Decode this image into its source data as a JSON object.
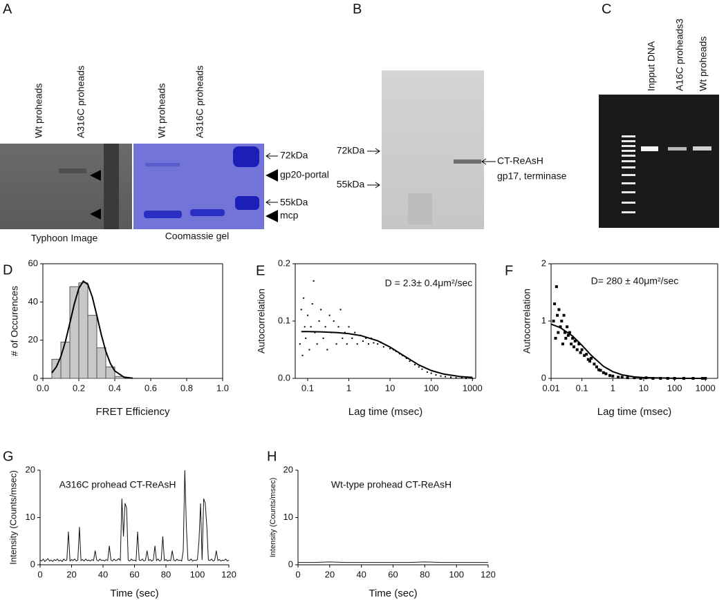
{
  "gels": {
    "A": {
      "panel_label": "A",
      "lanes": [
        "Wt proheads",
        "A316C proheads",
        "Wt proheads",
        "A316C  proheads"
      ],
      "markers": [
        "72kDa",
        "gp20-portal",
        "55kDa",
        "mcp"
      ],
      "captions": [
        "Typhoon Image",
        "Coomassie gel"
      ]
    },
    "B": {
      "panel_label": "B",
      "markers": [
        "72kDa",
        "55kDa"
      ],
      "band_labels": [
        "CT-ReAsH",
        "gp17, terminase"
      ]
    },
    "C": {
      "panel_label": "C",
      "lanes": [
        "Inpput DNA",
        "A16C  proheads3",
        "Wt proheads"
      ]
    }
  },
  "chart_data": [
    {
      "type": "histogram",
      "panel_label": "D",
      "x_label": "FRET Efficiency",
      "y_label": "# of Occurences",
      "bins": [
        0.05,
        0.1,
        0.15,
        0.2,
        0.25,
        0.3,
        0.35,
        0.4,
        0.45
      ],
      "counts": [
        10,
        19,
        48,
        50,
        33,
        16,
        6,
        1
      ],
      "fit_x": [
        0.05,
        0.075,
        0.1,
        0.125,
        0.15,
        0.175,
        0.2,
        0.225,
        0.25,
        0.275,
        0.3,
        0.325,
        0.35,
        0.375,
        0.4,
        0.45,
        0.5
      ],
      "fit_y": [
        2.9,
        6.0,
        11.4,
        19.1,
        28.9,
        39.0,
        47.1,
        50.9,
        49.2,
        42.6,
        33.0,
        22.9,
        14.2,
        7.9,
        3.9,
        0.7,
        0.1
      ],
      "color": "#c8c8c8",
      "xlim": [
        0,
        1
      ],
      "xticks": [
        {
          "value": 0,
          "label": "0.0"
        },
        0.2,
        0.4,
        0.6,
        0.8,
        {
          "value": 1,
          "label": "1.0"
        }
      ],
      "ylim": [
        0,
        60
      ],
      "yticks": [
        0,
        20,
        40,
        60
      ]
    },
    {
      "type": "scatter",
      "panel_label": "E",
      "x_label": "Lag time (msec)",
      "y_label": "Autocorrelation",
      "annotation": "D = 2.3± 0.4μm²/sec",
      "xscale": "log",
      "marker": "dot",
      "x": [
        0.065,
        0.07,
        0.075,
        0.08,
        0.085,
        0.09,
        0.1,
        0.11,
        0.12,
        0.13,
        0.14,
        0.15,
        0.17,
        0.19,
        0.21,
        0.24,
        0.27,
        0.3,
        0.34,
        0.38,
        0.43,
        0.5,
        0.56,
        0.63,
        0.7,
        0.8,
        0.9,
        1,
        1.2,
        1.4,
        1.6,
        1.9,
        2.2,
        2.6,
        3,
        3.5,
        4,
        5,
        6,
        7,
        8,
        10,
        12,
        14,
        17,
        20,
        25,
        30,
        40,
        50,
        60,
        80,
        100,
        130,
        170,
        220,
        300,
        400,
        550,
        700,
        900,
        1000
      ],
      "values": [
        0.06,
        0.12,
        0.04,
        0.14,
        0.09,
        0.07,
        0.11,
        0.05,
        0.09,
        0.13,
        0.17,
        0.08,
        0.06,
        0.1,
        0.12,
        0.07,
        0.09,
        0.05,
        0.11,
        0.08,
        0.1,
        0.06,
        0.09,
        0.12,
        0.07,
        0.08,
        0.06,
        0.09,
        0.07,
        0.08,
        0.06,
        0.075,
        0.065,
        0.07,
        0.06,
        0.07,
        0.062,
        0.06,
        0.063,
        0.055,
        0.058,
        0.052,
        0.05,
        0.047,
        0.043,
        0.04,
        0.035,
        0.03,
        0.024,
        0.02,
        0.016,
        0.011,
        0.009,
        0.006,
        0.004,
        0.003,
        0.002,
        0.001,
        0.001,
        0,
        0.001,
        0
      ],
      "fit_x": [
        0.07,
        0.1,
        0.2,
        0.5,
        1,
        2,
        5,
        10,
        20,
        50,
        100,
        200,
        500,
        1000
      ],
      "fit_y": [
        0.0817,
        0.0816,
        0.0812,
        0.08,
        0.078,
        0.0745,
        0.0656,
        0.0547,
        0.041,
        0.0234,
        0.0137,
        0.0075,
        0.0032,
        0.0016
      ],
      "xlim": [
        0.05,
        1200
      ],
      "xticks": [
        0.1,
        1,
        10,
        100,
        1000
      ],
      "ylim": [
        0,
        0.2
      ],
      "yticks": [
        {
          "value": 0,
          "label": "0.0"
        },
        0.1,
        0.2
      ]
    },
    {
      "type": "scatter",
      "panel_label": "F",
      "x_label": "Lag time (msec)",
      "y_label": "Autocorrelation",
      "annotation": "D= 280 ± 40μm²/sec",
      "xscale": "log",
      "marker": "square",
      "x": [
        0.012,
        0.013,
        0.014,
        0.015,
        0.016,
        0.017,
        0.018,
        0.02,
        0.022,
        0.024,
        0.026,
        0.028,
        0.03,
        0.033,
        0.036,
        0.04,
        0.045,
        0.05,
        0.055,
        0.06,
        0.07,
        0.08,
        0.09,
        0.1,
        0.12,
        0.14,
        0.16,
        0.18,
        0.2,
        0.25,
        0.3,
        0.35,
        0.4,
        0.5,
        0.6,
        0.8,
        1,
        1.5,
        2,
        3,
        5,
        8,
        12,
        20,
        35,
        60,
        100,
        200,
        400,
        800,
        1000
      ],
      "values": [
        1.0,
        1.3,
        0.7,
        1.6,
        1.1,
        0.8,
        1.2,
        0.9,
        1.0,
        0.6,
        1.1,
        0.8,
        0.7,
        0.9,
        0.75,
        0.8,
        0.6,
        0.7,
        0.55,
        0.65,
        0.5,
        0.6,
        0.45,
        0.5,
        0.4,
        0.42,
        0.33,
        0.3,
        0.35,
        0.25,
        0.2,
        0.15,
        0.14,
        0.1,
        0.08,
        0.05,
        0.04,
        0.02,
        0.02,
        0.01,
        0.01,
        0,
        0.01,
        0,
        0,
        0,
        0,
        0,
        0,
        0,
        0
      ],
      "fit_x": [
        0.01,
        0.02,
        0.05,
        0.1,
        0.2,
        0.5,
        1,
        2,
        5,
        10,
        100,
        1000
      ],
      "fit_y": [
        0.947,
        0.884,
        0.737,
        0.577,
        0.402,
        0.21,
        0.117,
        0.062,
        0.026,
        0.013,
        0.001,
        0
      ],
      "xlim": [
        0.01,
        2500
      ],
      "xticks": [
        0.01,
        0.1,
        1,
        10,
        100,
        1000
      ],
      "ylim": [
        0,
        2
      ],
      "yticks": [
        0,
        1,
        2
      ]
    },
    {
      "type": "line",
      "panel_label": "G",
      "x_label": "Time (sec)",
      "y_label": "Intensity (Counts/msec)",
      "annotation": "A316C prohead CT-ReAsH",
      "color": "#111111",
      "x": [
        0,
        1,
        2,
        3,
        4,
        5,
        6,
        7,
        8,
        9,
        10,
        11,
        12,
        13,
        14,
        15,
        16,
        17,
        18,
        19,
        20,
        21,
        22,
        23,
        24,
        25,
        26,
        27,
        28,
        29,
        30,
        31,
        32,
        33,
        34,
        35,
        36,
        37,
        38,
        39,
        40,
        41,
        42,
        43,
        44,
        45,
        46,
        47,
        48,
        49,
        50,
        51,
        52,
        53,
        54,
        55,
        56,
        57,
        58,
        59,
        60,
        61,
        62,
        63,
        64,
        65,
        66,
        67,
        68,
        69,
        70,
        71,
        72,
        73,
        74,
        75,
        76,
        77,
        78,
        79,
        80,
        81,
        82,
        83,
        84,
        85,
        86,
        87,
        88,
        89,
        90,
        91,
        92,
        93,
        94,
        95,
        96,
        97,
        98,
        99,
        100,
        101,
        102,
        103,
        104,
        105,
        106,
        107,
        108,
        109,
        110,
        111,
        112,
        113,
        114,
        115,
        116,
        117,
        118,
        119,
        120
      ],
      "values": [
        1,
        0.8,
        1.2,
        0.7,
        1,
        1.3,
        0.8,
        1,
        0.7,
        1.1,
        0.9,
        1.2,
        0.8,
        1,
        0.7,
        1.2,
        0.9,
        1,
        7,
        0.8,
        1.1,
        0.9,
        1.2,
        0.8,
        1,
        8,
        0.9,
        1.1,
        0.8,
        1.2,
        0.9,
        1,
        0.8,
        1.1,
        0.9,
        3,
        1,
        0.8,
        1.2,
        0.9,
        1,
        0.8,
        1.1,
        0.9,
        4,
        1,
        0.8,
        1.2,
        0.9,
        1,
        1.3,
        0.9,
        14,
        6,
        13,
        12,
        1,
        0.8,
        1.2,
        0.9,
        1,
        0.8,
        7,
        1,
        0.9,
        1.2,
        0.8,
        1,
        3,
        0.9,
        1.1,
        0.8,
        1,
        4,
        0.9,
        1.2,
        0.8,
        1,
        6,
        0.9,
        1.1,
        0.8,
        1,
        0.9,
        3,
        1,
        0.8,
        1.2,
        0.9,
        1,
        0.8,
        3,
        20,
        8,
        1,
        0.9,
        1.2,
        0.8,
        1,
        0.9,
        1.1,
        5,
        13,
        1,
        14,
        13,
        8,
        1,
        0.9,
        1.2,
        0.8,
        1,
        3,
        0.9,
        1.1,
        0.8,
        1,
        0.9,
        1.2,
        0.8,
        1
      ],
      "xlim": [
        0,
        120
      ],
      "xticks": [
        0,
        20,
        40,
        60,
        80,
        100,
        120
      ],
      "ylim": [
        0,
        20
      ],
      "yticks": [
        0,
        10,
        20
      ]
    },
    {
      "type": "line",
      "panel_label": "H",
      "x_label": "Time (sec)",
      "y_label": "Intensity (Counts/msec)",
      "annotation": "Wt-type prohead CT-ReAsH",
      "color": "#111111",
      "x": [
        0,
        10,
        20,
        30,
        40,
        50,
        60,
        70,
        80,
        90,
        100,
        110,
        120
      ],
      "values": [
        0.5,
        0.5,
        0.6,
        0.5,
        0.5,
        0.5,
        0.5,
        0.5,
        0.6,
        0.5,
        0.5,
        0.5,
        0.5
      ],
      "xlim": [
        0,
        120
      ],
      "xticks": [
        0,
        20,
        40,
        60,
        80,
        100,
        120
      ],
      "ylim": [
        0,
        20
      ],
      "yticks": [
        0,
        10,
        20
      ]
    }
  ]
}
